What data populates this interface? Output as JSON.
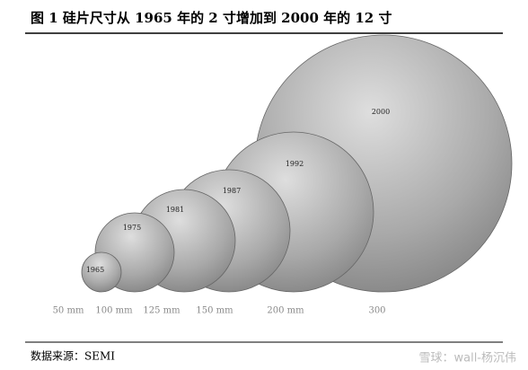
{
  "title": "图 1 硅片尺寸从 1965 年的 2 寸增加到 2000 年的 12 寸",
  "circles": [
    {
      "year": "1965",
      "size": "50 mm"
    },
    {
      "year": "1975",
      "size": "100 mm"
    },
    {
      "year": "1981",
      "size": "125 mm"
    },
    {
      "year": "1987",
      "size": "150 mm"
    },
    {
      "year": "1992",
      "size": "200 mm"
    },
    {
      "year": "2000",
      "size": "300"
    }
  ],
  "source": "数据来源：SEMI",
  "watermark": "雪球：wall-杨沉伟"
}
